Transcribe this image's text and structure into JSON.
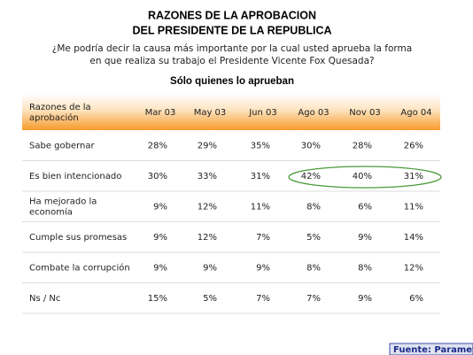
{
  "header": {
    "title": [
      "RAZONES DE LA APROBACION",
      "DEL PRESIDENTE DE LA REPUBLICA"
    ],
    "question": [
      "¿Me podría decir la causa más importante por la cual usted aprueba la forma",
      "en que realiza su trabajo el Presidente Vicente Fox Quesada?"
    ],
    "subtitle": "Sólo quienes lo aprueban"
  },
  "table": {
    "header": {
      "label": [
        "Razones de la",
        "aprobación"
      ],
      "columns": [
        "Mar 03",
        "May 03",
        "Jun 03",
        "Ago 03",
        "Nov 03",
        "Ago 04"
      ]
    },
    "rows": [
      {
        "label": [
          "Sabe gobernar"
        ],
        "values": [
          "28%",
          "29%",
          "35%",
          "30%",
          "28%",
          "26%"
        ]
      },
      {
        "label": [
          "Es bien intencionado"
        ],
        "values": [
          "30%",
          "33%",
          "31%",
          "42%",
          "40%",
          "31%"
        ]
      },
      {
        "label": [
          "Ha mejorado la",
          "economía"
        ],
        "values": [
          "9%",
          "12%",
          "11%",
          "8%",
          "6%",
          "11%"
        ]
      },
      {
        "label": [
          "Cumple sus promesas"
        ],
        "values": [
          "9%",
          "12%",
          "7%",
          "5%",
          "9%",
          "14%"
        ]
      },
      {
        "label": [
          "Combate la corrupción"
        ],
        "values": [
          "9%",
          "9%",
          "9%",
          "8%",
          "8%",
          "12%"
        ]
      },
      {
        "label": [
          "Ns / Nc"
        ],
        "values": [
          "15%",
          "5%",
          "7%",
          "7%",
          "9%",
          "6%"
        ]
      }
    ]
  },
  "source": "Fuente: Parametrí"
}
